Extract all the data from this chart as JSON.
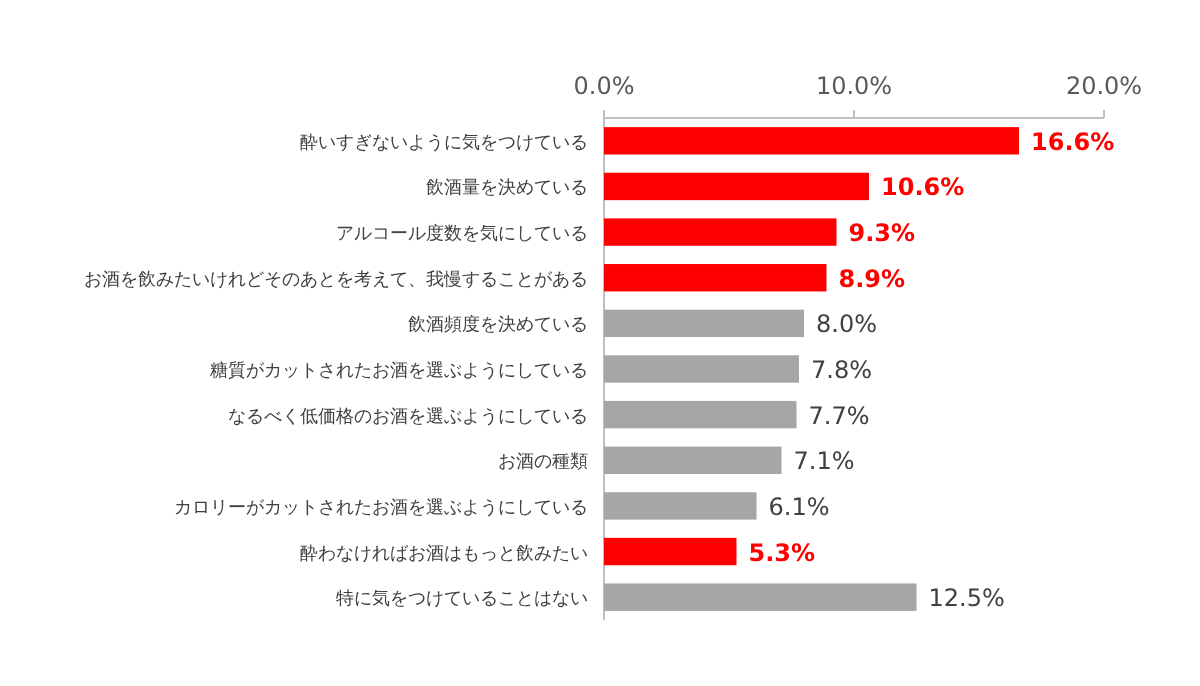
{
  "chart_data": {
    "type": "bar",
    "orientation": "horizontal",
    "categories": [
      "酔いすぎないように気をつけている",
      "飲酒量を決めている",
      "アルコール度数を気にしている",
      "お酒を飲みたいけれどそのあとを考えて、我慢することがある",
      "飲酒頻度を決めている",
      "糖質がカットされたお酒を選ぶようにしている",
      "なるべく低価格のお酒を選ぶようにしている",
      "お酒の種類",
      "カロリーがカットされたお酒を選ぶようにしている",
      "酔わなければお酒はもっと飲みたい",
      "特に気をつけていることはない"
    ],
    "values": [
      16.6,
      10.6,
      9.3,
      8.9,
      8.0,
      7.8,
      7.7,
      7.1,
      6.1,
      5.3,
      12.5
    ],
    "colors": [
      "#ff0000",
      "#ff0000",
      "#ff0000",
      "#ff0000",
      "#a6a6a6",
      "#a6a6a6",
      "#a6a6a6",
      "#a6a6a6",
      "#a6a6a6",
      "#ff0000",
      "#a6a6a6"
    ],
    "value_labels": [
      "16.6%",
      "10.6%",
      "9.3%",
      "8.9%",
      "8.0%",
      "7.8%",
      "7.7%",
      "7.1%",
      "6.1%",
      "5.3%",
      "12.5%"
    ],
    "xlim": [
      0,
      20
    ],
    "xticks": [
      {
        "value": 0,
        "label": "0.0%"
      },
      {
        "value": 10,
        "label": "10.0%"
      },
      {
        "value": 20,
        "label": "20.0%"
      }
    ],
    "grid": false
  }
}
